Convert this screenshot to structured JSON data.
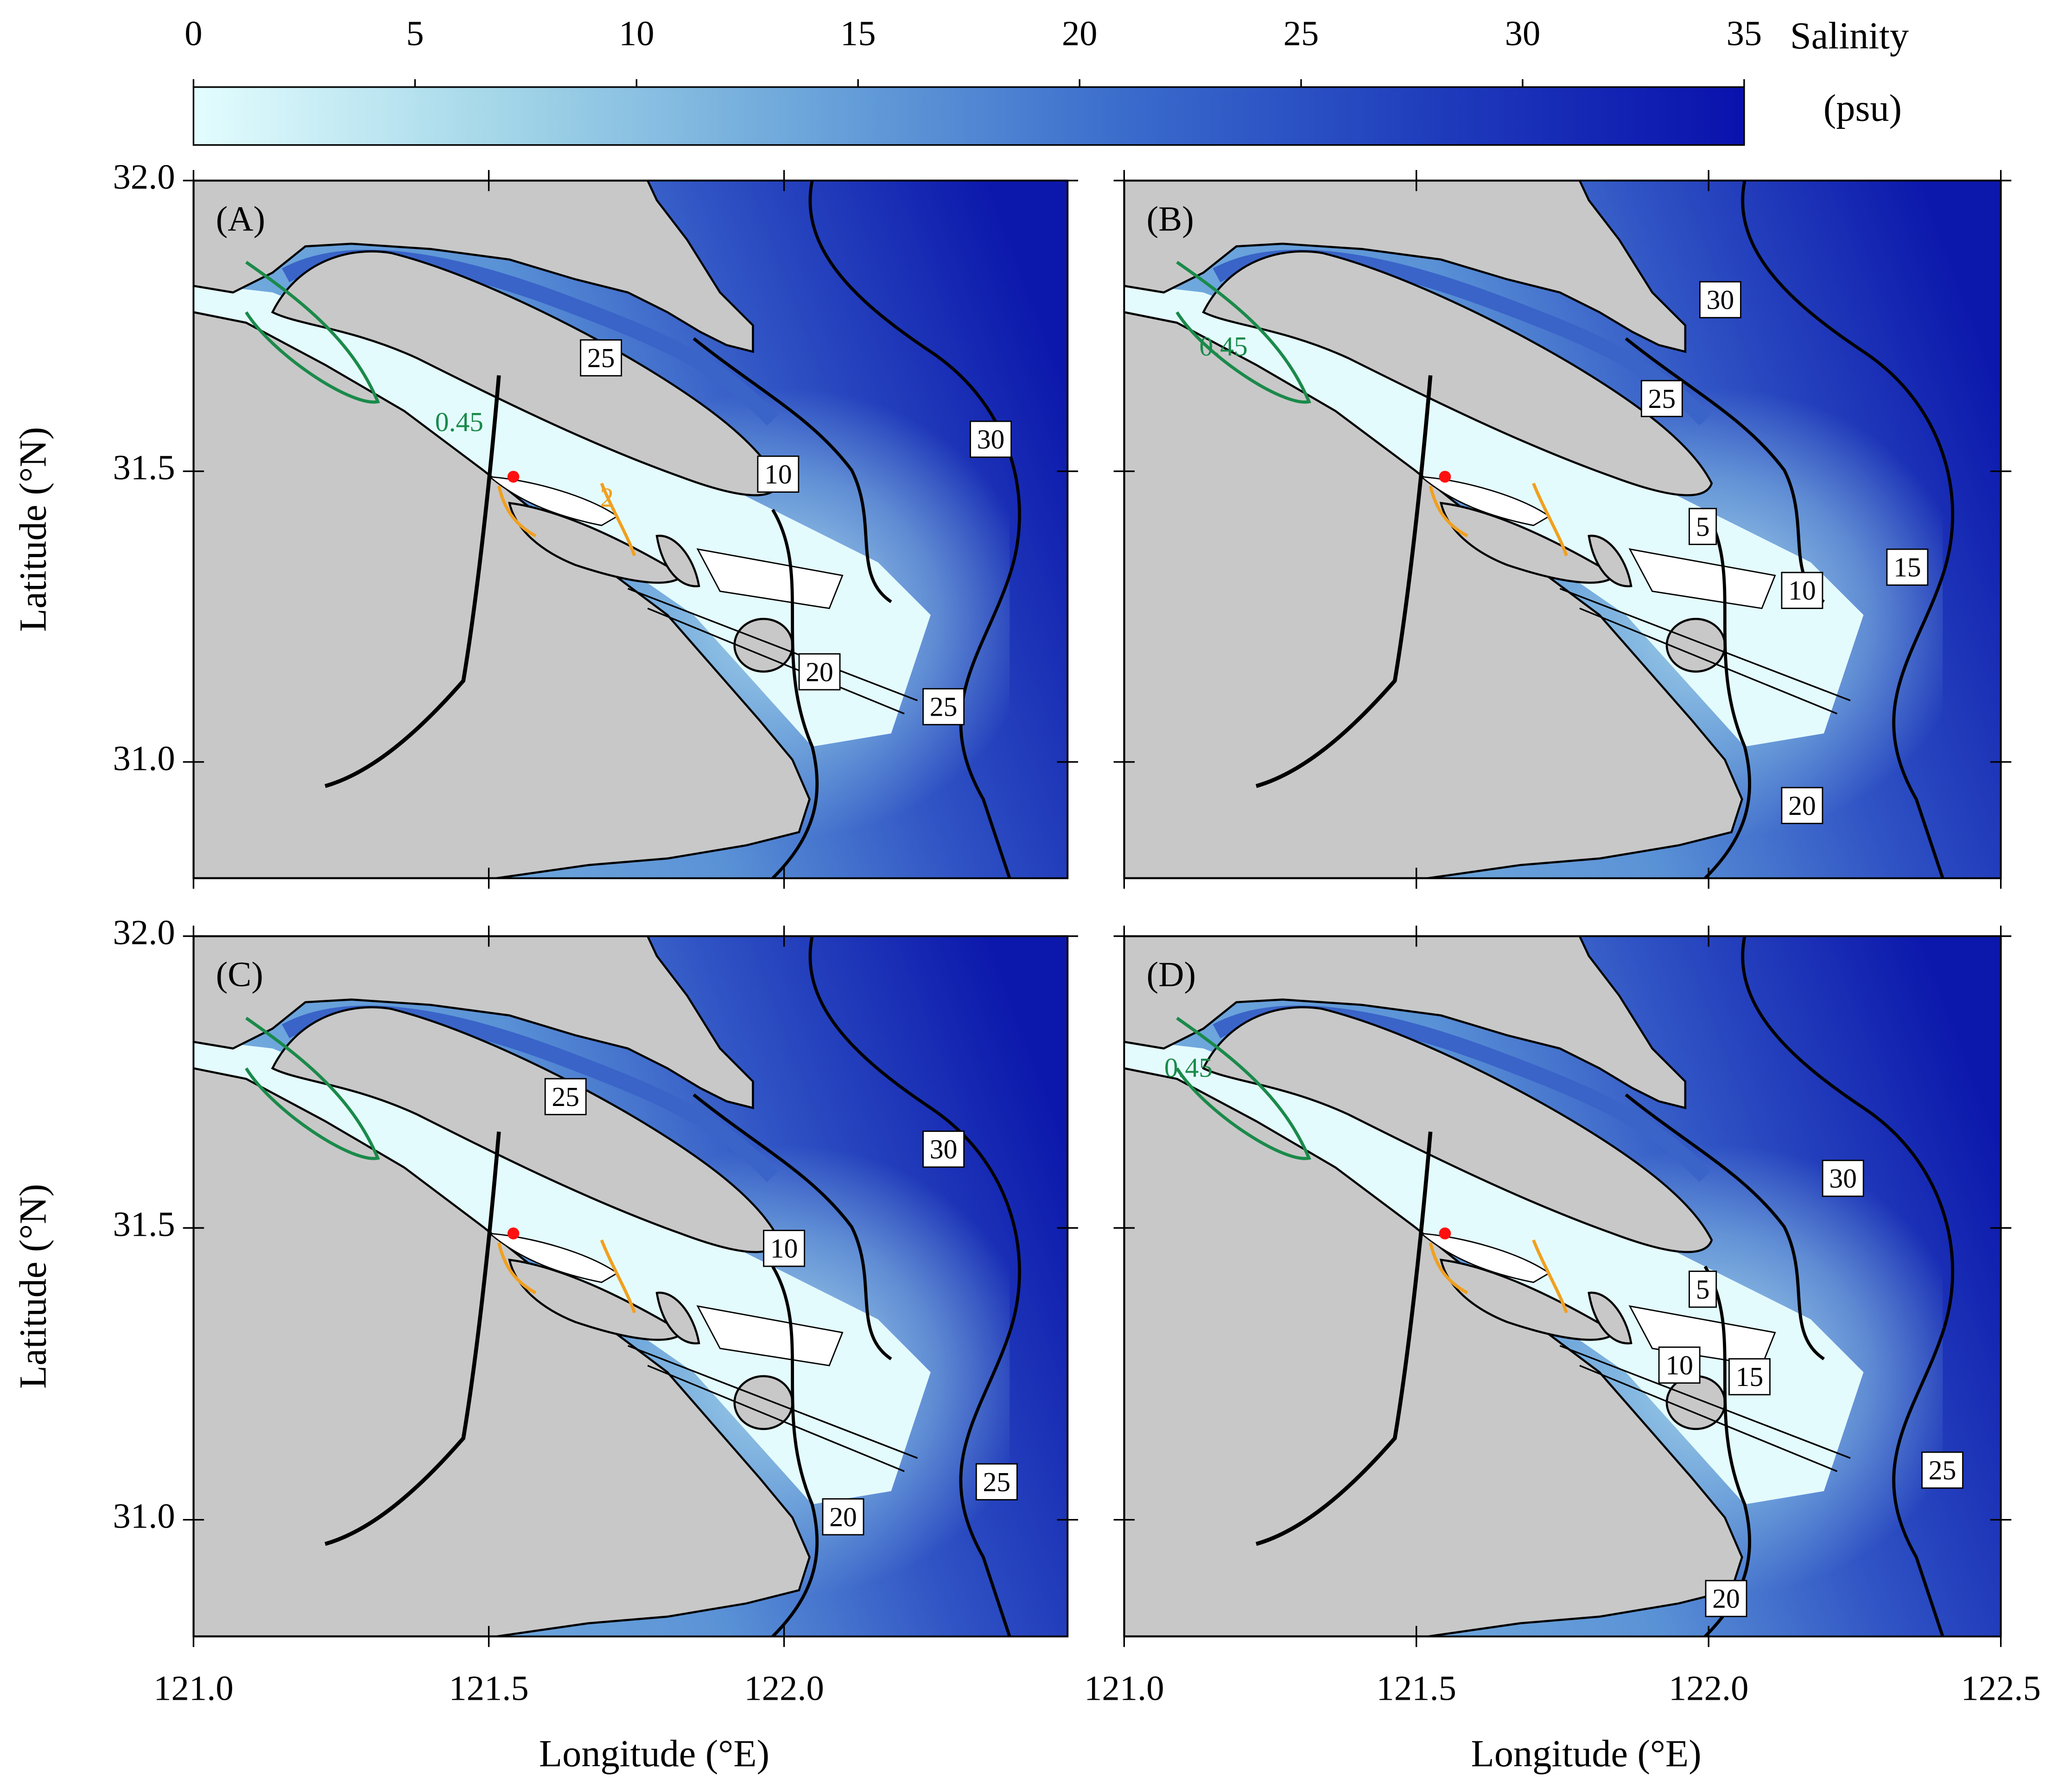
{
  "colorbar": {
    "title": "Salinity",
    "unit": "(psu)",
    "lim": [
      0,
      35
    ],
    "ticks": [
      0,
      5,
      10,
      15,
      20,
      25,
      30,
      35
    ],
    "colors": [
      "#e3fdfe",
      "#a3d6e8",
      "#6aa4da",
      "#3a6ccc",
      "#1f3cbc",
      "#0a12ad"
    ]
  },
  "columns": [
    {
      "label": "Longitude (°E)",
      "xlim": [
        121.0,
        122.48
      ],
      "xticks": [
        {
          "value": 121.0,
          "label": "121.0"
        },
        {
          "value": 121.5,
          "label": "121.5"
        },
        {
          "value": 122.0,
          "label": "122.0"
        }
      ]
    },
    {
      "label": "Longitude (°E)",
      "xlim": [
        121.0,
        122.5
      ],
      "xticks": [
        {
          "value": 121.0,
          "label": "121.0"
        },
        {
          "value": 121.5,
          "label": "121.5"
        },
        {
          "value": 122.0,
          "label": "122.0"
        },
        {
          "value": 122.5,
          "label": "122.5"
        }
      ]
    }
  ],
  "rows": [
    {
      "label": "Latitude (°N)",
      "ylim": [
        30.8,
        32.0
      ],
      "yticks": [
        {
          "value": 31.0,
          "label": "31.0"
        },
        {
          "value": 31.5,
          "label": "31.5"
        },
        {
          "value": 32.0,
          "label": "32.0"
        }
      ]
    },
    {
      "label": "Latitude (°N)",
      "ylim": [
        30.8,
        32.0
      ],
      "yticks": [
        {
          "value": 31.0,
          "label": "31.0"
        },
        {
          "value": 31.5,
          "label": "31.5"
        },
        {
          "value": 32.0,
          "label": "32.0"
        }
      ]
    }
  ],
  "panels": [
    {
      "label": "(A)",
      "contour_labels": [
        {
          "value": 0.45,
          "lon": 121.45,
          "lat": 31.58,
          "color": "#1a8a4a"
        },
        {
          "value": 2,
          "lon": 121.7,
          "lat": 31.45,
          "color": "#f0a020"
        },
        {
          "value": 25,
          "lon": 121.69,
          "lat": 31.69,
          "color": "#000000"
        },
        {
          "value": 10,
          "lon": 121.99,
          "lat": 31.49,
          "color": "#000000"
        },
        {
          "value": 30,
          "lon": 122.35,
          "lat": 31.55,
          "color": "#000000"
        },
        {
          "value": 20,
          "lon": 122.06,
          "lat": 31.15,
          "color": "#000000"
        },
        {
          "value": 25,
          "lon": 122.27,
          "lat": 31.09,
          "color": "#000000"
        }
      ]
    },
    {
      "label": "(B)",
      "contour_labels": [
        {
          "value": 0.45,
          "lon": 121.17,
          "lat": 31.71,
          "color": "#1a8a4a"
        },
        {
          "value": 30,
          "lon": 122.02,
          "lat": 31.79,
          "color": "#000000"
        },
        {
          "value": 25,
          "lon": 121.92,
          "lat": 31.62,
          "color": "#000000"
        },
        {
          "value": 5,
          "lon": 121.99,
          "lat": 31.4,
          "color": "#000000"
        },
        {
          "value": 15,
          "lon": 122.34,
          "lat": 31.33,
          "color": "#000000"
        },
        {
          "value": 10,
          "lon": 122.16,
          "lat": 31.29,
          "color": "#000000"
        },
        {
          "value": 20,
          "lon": 122.16,
          "lat": 30.92,
          "color": "#000000"
        }
      ]
    },
    {
      "label": "(C)",
      "contour_labels": [
        {
          "value": 25,
          "lon": 121.63,
          "lat": 31.72,
          "color": "#000000"
        },
        {
          "value": 30,
          "lon": 122.27,
          "lat": 31.63,
          "color": "#000000"
        },
        {
          "value": 10,
          "lon": 122.0,
          "lat": 31.46,
          "color": "#000000"
        },
        {
          "value": 25,
          "lon": 122.36,
          "lat": 31.06,
          "color": "#000000"
        },
        {
          "value": 20,
          "lon": 122.1,
          "lat": 31.0,
          "color": "#000000"
        }
      ]
    },
    {
      "label": "(D)",
      "contour_labels": [
        {
          "value": 0.45,
          "lon": 121.11,
          "lat": 31.77,
          "color": "#1a8a4a"
        },
        {
          "value": 30,
          "lon": 122.23,
          "lat": 31.58,
          "color": "#000000"
        },
        {
          "value": 5,
          "lon": 121.99,
          "lat": 31.39,
          "color": "#000000"
        },
        {
          "value": 10,
          "lon": 121.95,
          "lat": 31.26,
          "color": "#000000"
        },
        {
          "value": 15,
          "lon": 122.07,
          "lat": 31.24,
          "color": "#000000"
        },
        {
          "value": 25,
          "lon": 122.4,
          "lat": 31.08,
          "color": "#000000"
        },
        {
          "value": 20,
          "lon": 122.03,
          "lat": 30.86,
          "color": "#000000"
        }
      ]
    }
  ]
}
